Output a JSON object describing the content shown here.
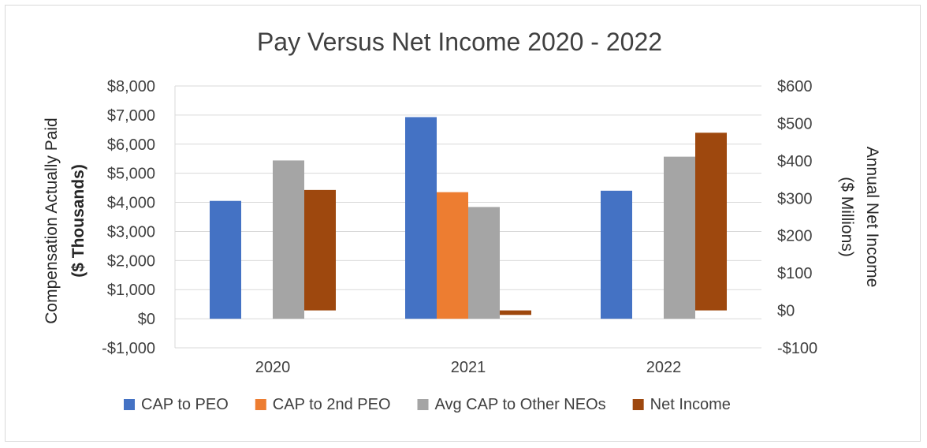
{
  "chart_data": {
    "type": "bar",
    "title": "Pay Versus Net Income 2020 - 2022",
    "categories": [
      "2020",
      "2021",
      "2022"
    ],
    "left_axis": {
      "label_line1": "Compensation Actually Paid",
      "label_line2": "($ Thousands)",
      "ylim": [
        -1000,
        8000
      ],
      "ticks": [
        -1000,
        0,
        1000,
        2000,
        3000,
        4000,
        5000,
        6000,
        7000,
        8000
      ],
      "tick_labels": [
        "-$1,000",
        "$0",
        "$1,000",
        "$2,000",
        "$3,000",
        "$4,000",
        "$5,000",
        "$6,000",
        "$7,000",
        "$8,000"
      ]
    },
    "right_axis": {
      "label_line1": "Annual Net Income",
      "label_line2": "($ Millions)",
      "ylim": [
        -100,
        600
      ],
      "ticks": [
        -100,
        0,
        100,
        200,
        300,
        400,
        500,
        600
      ],
      "tick_labels": [
        "-$100",
        "$0",
        "$100",
        "$200",
        "$300",
        "$400",
        "$500",
        "$600"
      ]
    },
    "series": [
      {
        "name": "CAP to PEO",
        "axis": "left",
        "color": "#4472c4",
        "values": [
          4050,
          6930,
          4400
        ]
      },
      {
        "name": "CAP to 2nd PEO",
        "axis": "left",
        "color": "#ed7d31",
        "values": [
          null,
          4350,
          null
        ]
      },
      {
        "name": "Avg CAP to Other NEOs",
        "axis": "left",
        "color": "#a5a5a5",
        "values": [
          5440,
          3840,
          5570
        ]
      },
      {
        "name": "Net Income",
        "axis": "right",
        "color": "#9e480e",
        "values": [
          322,
          -12,
          475
        ]
      }
    ],
    "legend_position": "bottom",
    "grid": true
  }
}
